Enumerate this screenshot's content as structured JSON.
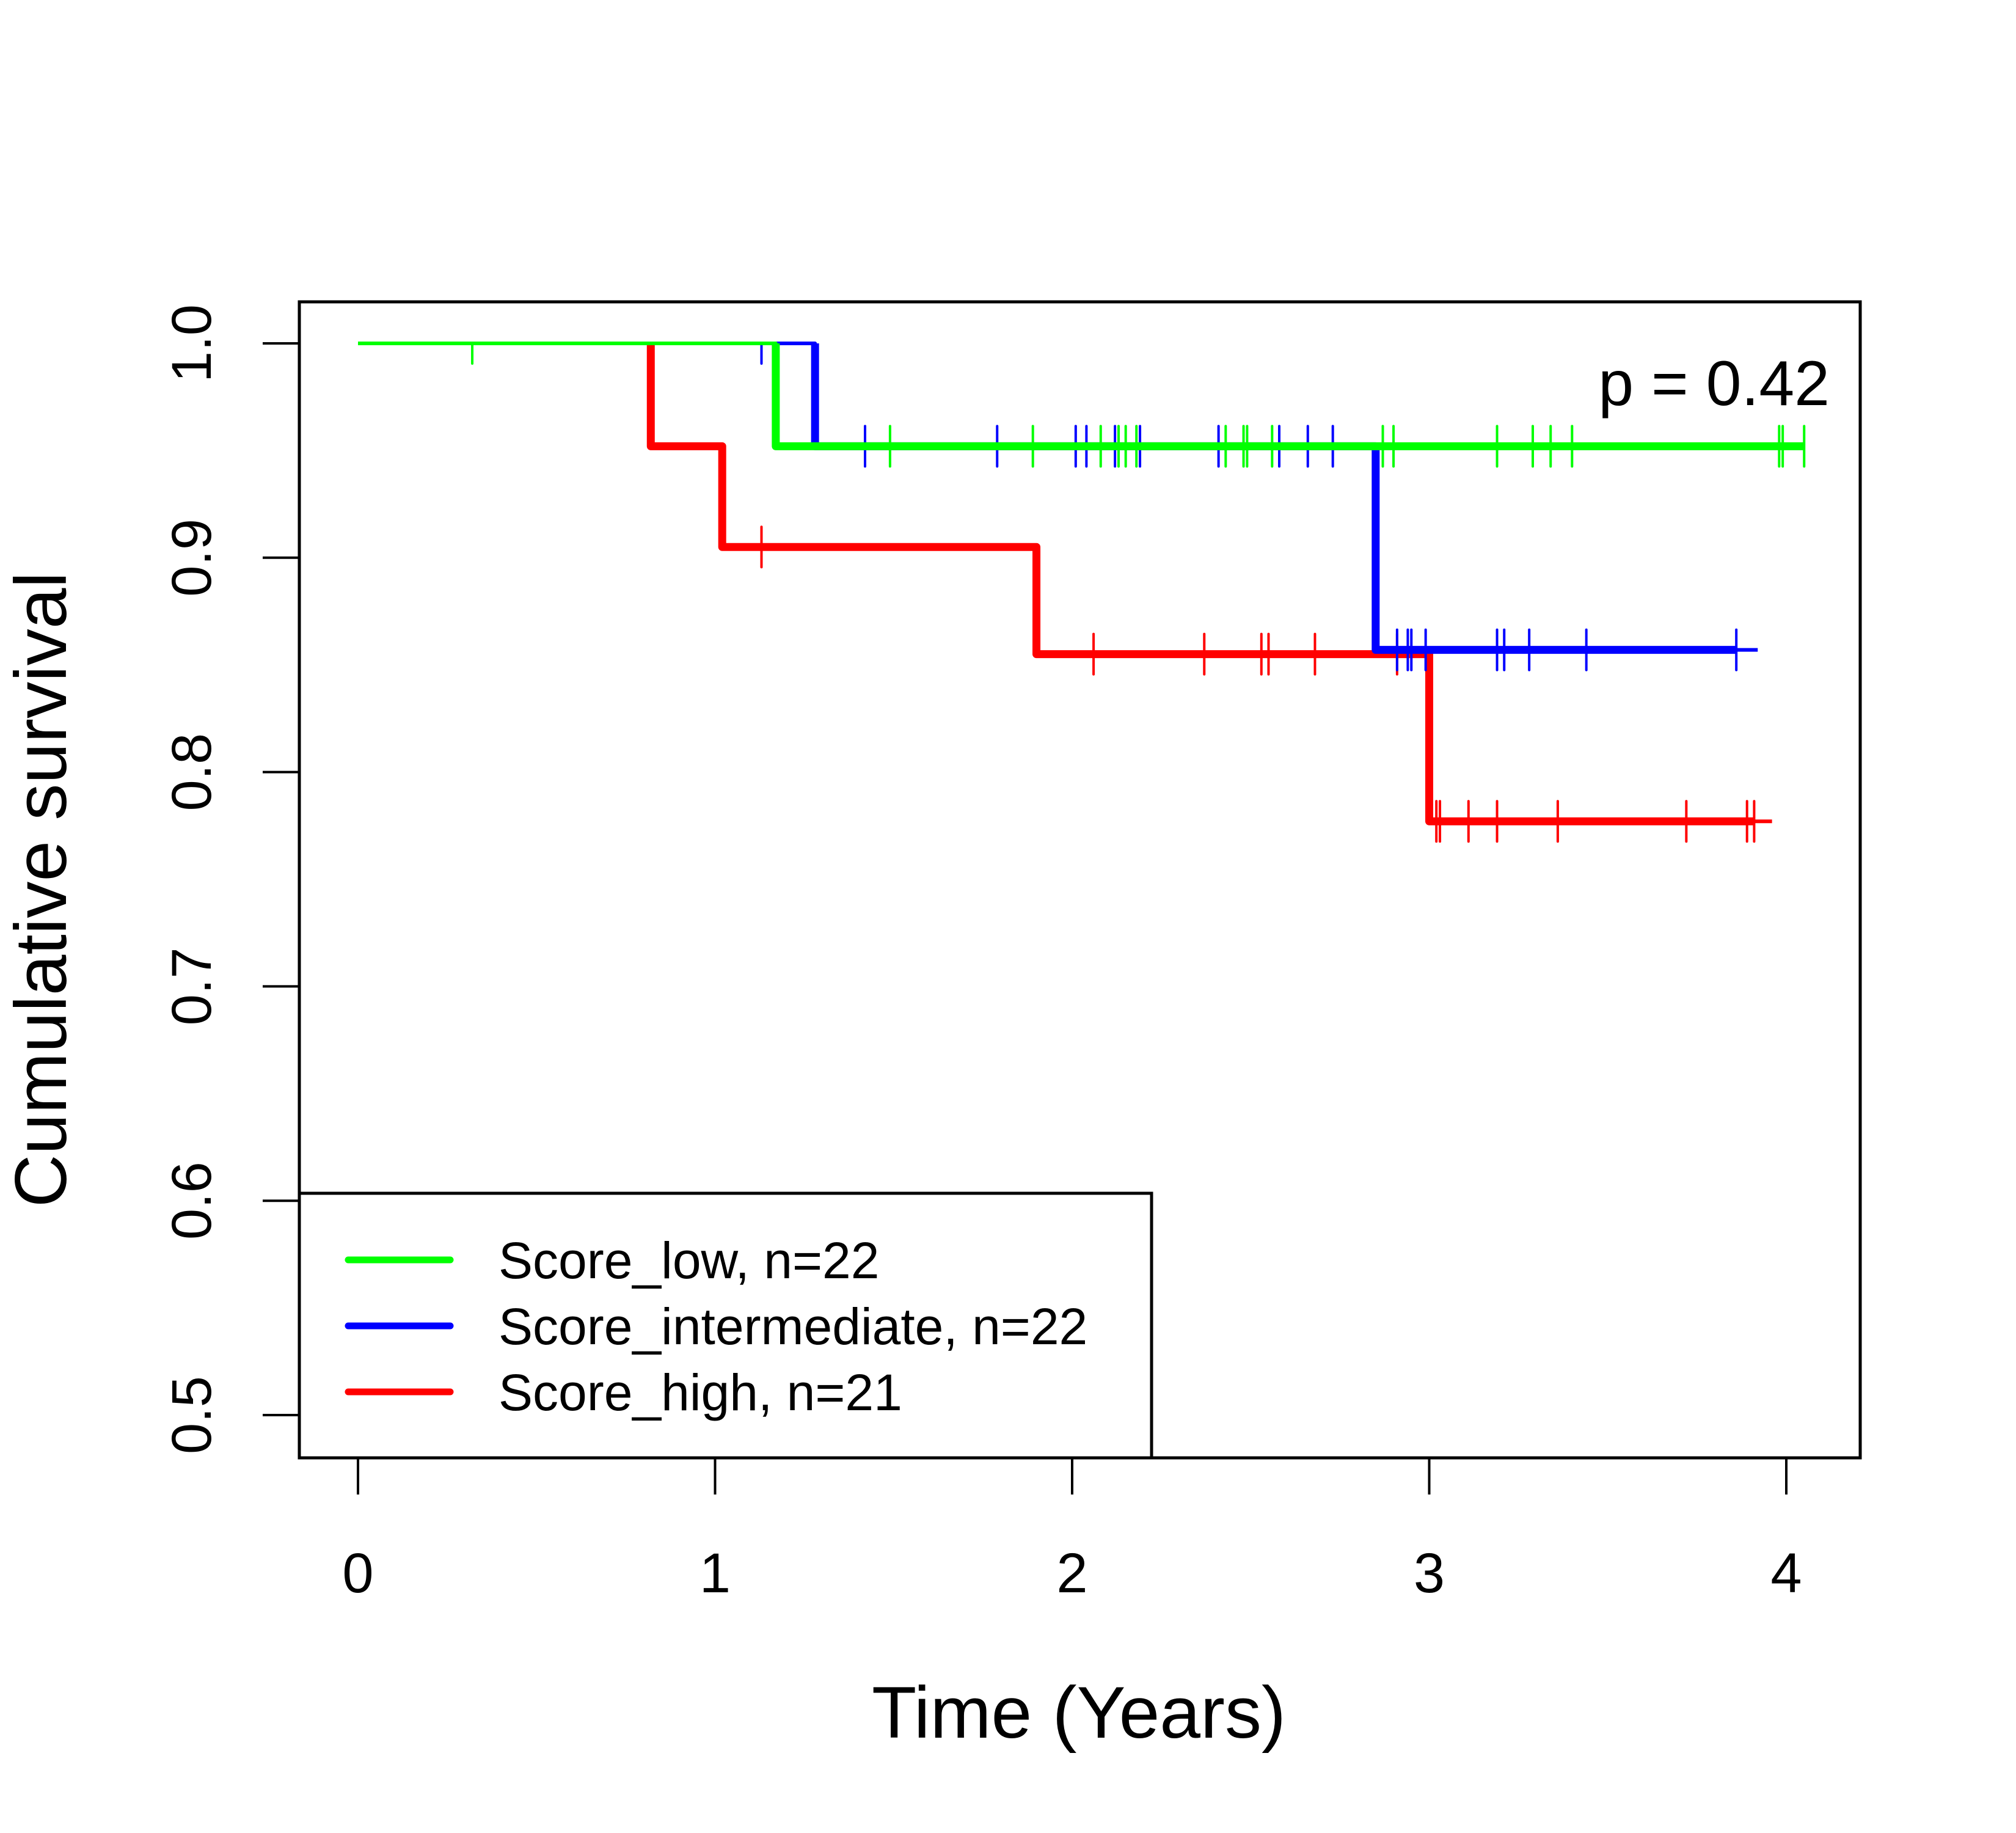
{
  "chart_data": {
    "type": "line",
    "subtype": "kaplan-meier",
    "title": "",
    "xlabel": "Time (Years)",
    "ylabel": "Cumulative survival",
    "xlim": [
      0,
      4.2
    ],
    "ylim": [
      0.5,
      1.0
    ],
    "x_ticks": [
      0,
      1,
      2,
      3,
      4
    ],
    "x_tick_labels": [
      "0",
      "1",
      "2",
      "3",
      "4"
    ],
    "y_ticks": [
      0.5,
      0.6,
      0.7,
      0.8,
      0.9,
      1.0
    ],
    "y_tick_labels": [
      "0.5",
      "0.6",
      "0.7",
      "0.8",
      "0.9",
      "1.0"
    ],
    "grid": false,
    "legend_position": "bottom-left",
    "annotation": "p = 0.42",
    "series": [
      {
        "name": "Score_low, n=22",
        "color": "#00ff00",
        "steps": [
          [
            0,
            1.0
          ],
          [
            1.17,
            0.952
          ]
        ],
        "end_time": 4.05,
        "censored": [
          0.32,
          1.49,
          1.89,
          2.08,
          2.13,
          2.15,
          2.18,
          2.43,
          2.48,
          2.49,
          2.56,
          2.87,
          2.9,
          3.19,
          3.29,
          3.34,
          3.4,
          3.98,
          3.99,
          4.05
        ]
      },
      {
        "name": "Score_intermediate, n=22",
        "color": "#0000ff",
        "steps": [
          [
            0,
            1.0
          ],
          [
            1.28,
            0.952
          ],
          [
            2.85,
            0.857
          ]
        ],
        "end_time": 3.92,
        "censored": [
          1.13,
          1.42,
          1.79,
          2.01,
          2.04,
          2.12,
          2.19,
          2.41,
          2.58,
          2.66,
          2.73,
          2.91,
          2.94,
          2.95,
          2.99,
          3.19,
          3.21,
          3.28,
          3.44,
          3.86
        ]
      },
      {
        "name": "Score_high, n=21",
        "color": "#ff0000",
        "steps": [
          [
            0,
            1.0
          ],
          [
            0.82,
            0.952
          ],
          [
            1.02,
            0.905
          ],
          [
            1.9,
            0.855
          ],
          [
            3.0,
            0.777
          ]
        ],
        "end_time": 3.96,
        "censored": [
          1.13,
          2.06,
          2.37,
          2.53,
          2.55,
          2.68,
          2.91,
          3.02,
          3.03,
          3.11,
          3.19,
          3.36,
          3.72,
          3.89,
          3.91
        ]
      }
    ]
  }
}
